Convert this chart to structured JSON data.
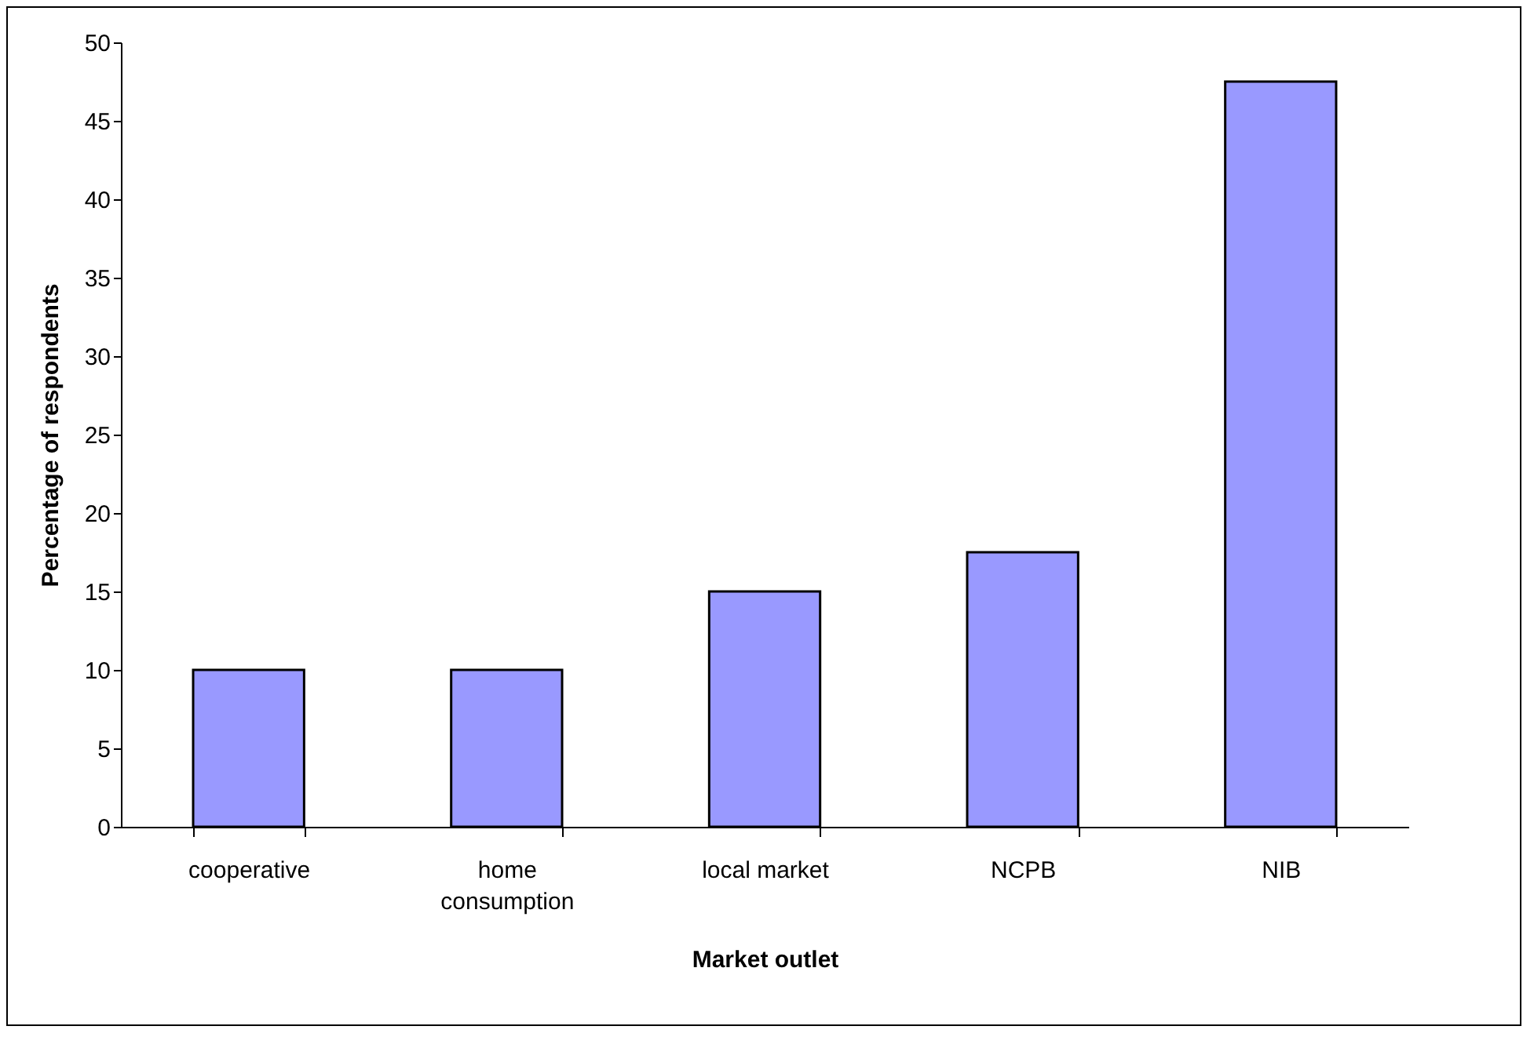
{
  "chart_data": {
    "type": "bar",
    "xlabel": "Market outlet",
    "ylabel": "Percentage of respondents",
    "categories": [
      "cooperative",
      "home consumption",
      "local market",
      "NCPB",
      "NIB"
    ],
    "values": [
      10,
      10,
      15,
      17.5,
      47.5
    ],
    "color": "#9999ff",
    "ylim": [
      0,
      50
    ],
    "yticks": [
      0,
      5,
      10,
      15,
      20,
      25,
      30,
      35,
      40,
      45,
      50
    ],
    "grid": false
  }
}
